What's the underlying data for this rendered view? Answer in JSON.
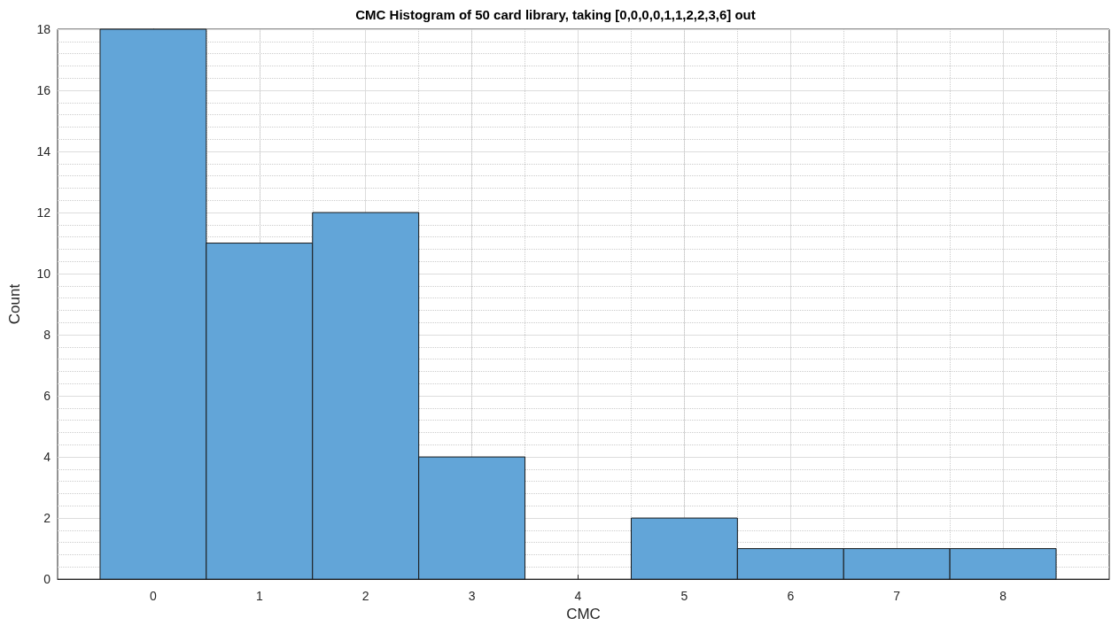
{
  "chart_data": {
    "type": "histogram",
    "title": "CMC Histogram of 50 card library, taking [0,0,0,0,1,1,2,2,3,6] out",
    "xlabel": "CMC",
    "ylabel": "Count",
    "bins": [
      -0.5,
      0.5,
      1.5,
      2.5,
      3.5,
      4.5,
      5.5,
      6.5,
      7.5,
      8.5
    ],
    "values": [
      18,
      11,
      12,
      4,
      0,
      2,
      1,
      1,
      1
    ],
    "color": "#62a5d8",
    "xlim": [
      -0.9,
      9
    ],
    "xticks": [
      0,
      1,
      2,
      3,
      4,
      5,
      6,
      7,
      8
    ],
    "ylim": [
      0,
      18
    ],
    "yticks": [
      0,
      2,
      4,
      6,
      8,
      10,
      12,
      14,
      16,
      18
    ],
    "grid": true
  }
}
